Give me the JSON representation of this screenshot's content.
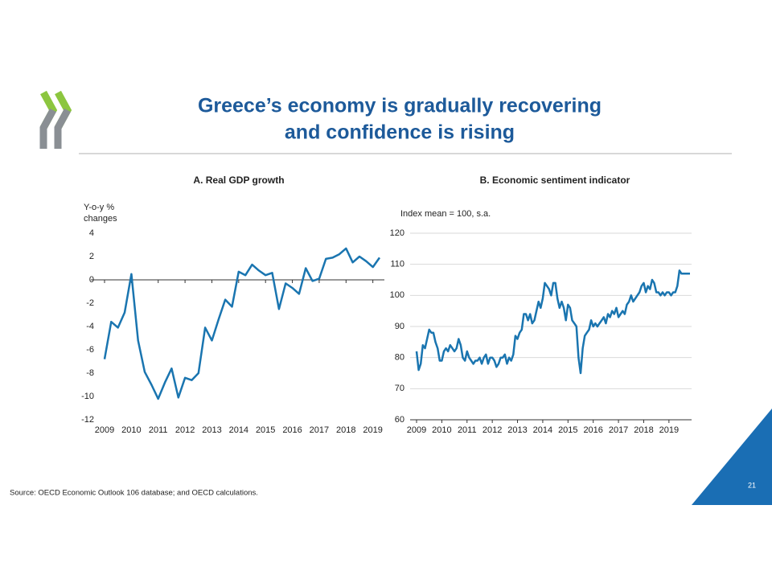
{
  "title": [
    "Greece’s economy is gradually recovering",
    "and confidence is rising"
  ],
  "source": "Source: OECD Economic Outlook 106 database; and OECD calculations.",
  "page_number": 21,
  "chart_data": [
    {
      "type": "line",
      "title": "A. Real GDP growth",
      "ylabel": [
        "Y-o-y %",
        "changes"
      ],
      "categories": [
        "2009",
        null,
        null,
        null,
        "2010",
        null,
        null,
        null,
        "2011",
        null,
        null,
        null,
        "2012",
        null,
        null,
        null,
        "2013",
        null,
        null,
        null,
        "2014",
        null,
        null,
        null,
        "2015",
        null,
        null,
        null,
        "2016",
        null,
        null,
        null,
        "2017",
        null,
        null,
        null,
        "2018",
        null,
        null,
        null,
        "2019",
        null
      ],
      "values": [
        -6.8,
        -3.6,
        -4.1,
        -2.8,
        0.5,
        -5.2,
        -7.9,
        -9.0,
        -10.2,
        -8.8,
        -7.6,
        -10.1,
        -8.4,
        -8.6,
        -8.0,
        -4.1,
        -5.2,
        -3.4,
        -1.7,
        -2.3,
        0.7,
        0.4,
        1.3,
        0.8,
        0.4,
        0.6,
        -2.5,
        -0.3,
        -0.7,
        -1.2,
        1.0,
        -0.1,
        0.1,
        1.8,
        1.9,
        2.2,
        2.7,
        1.5,
        2.0,
        1.6,
        1.1,
        1.9
      ],
      "color": "#1a75b0",
      "ylim": [
        -12,
        4
      ],
      "yticks": [
        -12,
        -10,
        -8,
        -6,
        -4,
        -2,
        0,
        2,
        4
      ],
      "grid": false
    },
    {
      "type": "line",
      "title": "B. Economic sentiment indicator",
      "ylabel": "Index mean = 100, s.a.",
      "categories": [
        "2009",
        null,
        null,
        null,
        null,
        null,
        null,
        null,
        null,
        null,
        null,
        null,
        "2010",
        null,
        null,
        null,
        null,
        null,
        null,
        null,
        null,
        null,
        null,
        null,
        "2011",
        null,
        null,
        null,
        null,
        null,
        null,
        null,
        null,
        null,
        null,
        null,
        "2012",
        null,
        null,
        null,
        null,
        null,
        null,
        null,
        null,
        null,
        null,
        null,
        "2013",
        null,
        null,
        null,
        null,
        null,
        null,
        null,
        null,
        null,
        null,
        null,
        "2014",
        null,
        null,
        null,
        null,
        null,
        null,
        null,
        null,
        null,
        null,
        null,
        "2015",
        null,
        null,
        null,
        null,
        null,
        null,
        null,
        null,
        null,
        null,
        null,
        "2016",
        null,
        null,
        null,
        null,
        null,
        null,
        null,
        null,
        null,
        null,
        null,
        "2017",
        null,
        null,
        null,
        null,
        null,
        null,
        null,
        null,
        null,
        null,
        null,
        "2018",
        null,
        null,
        null,
        null,
        null,
        null,
        null,
        null,
        null,
        null,
        null,
        "2019",
        null,
        null,
        null,
        null,
        null,
        null,
        null,
        null,
        null,
        null
      ],
      "values": [
        82,
        76,
        78,
        84,
        83,
        86,
        89,
        88,
        88,
        85,
        83,
        79,
        79,
        82,
        83,
        82,
        84,
        83,
        82,
        83,
        86,
        84,
        80,
        79,
        82,
        80,
        79,
        78,
        79,
        79,
        80,
        78,
        80,
        81,
        78,
        80,
        80,
        79,
        77,
        78,
        80,
        80,
        81,
        78,
        80,
        79,
        81,
        87,
        86,
        88,
        89,
        94,
        94,
        92,
        94,
        91,
        92,
        95,
        98,
        96,
        99,
        104,
        103,
        102,
        100,
        104,
        104,
        99,
        96,
        98,
        96,
        92,
        97,
        96,
        92,
        91,
        90,
        80,
        75,
        83,
        87,
        88,
        89,
        92,
        90,
        91,
        90,
        91,
        92,
        93,
        91,
        94,
        93,
        95,
        94,
        96,
        93,
        94,
        95,
        94,
        97,
        98,
        100,
        98,
        99,
        100,
        101,
        103,
        104,
        101,
        103,
        102,
        105,
        104,
        101,
        101,
        100,
        101,
        100,
        101,
        101,
        100,
        101,
        101,
        103,
        108,
        107,
        107,
        107,
        107,
        107
      ],
      "color": "#1a75b0",
      "ylim": [
        60,
        120
      ],
      "yticks": [
        60,
        70,
        80,
        90,
        100,
        110,
        120
      ],
      "grid": true
    }
  ]
}
